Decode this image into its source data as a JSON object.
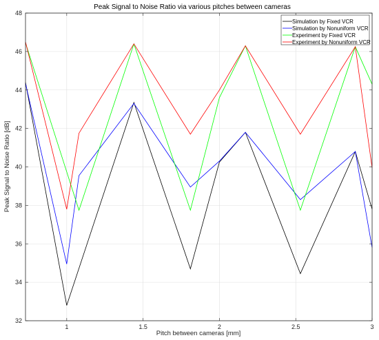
{
  "chart_data": {
    "type": "line",
    "title": "Peak Signal to Noise Ratio via various pitches between cameras",
    "xlabel": "Pitch between cameras [mm]",
    "ylabel": "Peak Signal to Noise Ratio [dB]",
    "xlim": [
      0.73,
      3.0
    ],
    "ylim": [
      32,
      48
    ],
    "xticks": [
      1,
      1.5,
      2,
      2.5,
      3
    ],
    "xtick_labels": [
      "1",
      "1.5",
      "2",
      "2.5",
      "3"
    ],
    "yticks": [
      32,
      34,
      36,
      38,
      40,
      42,
      44,
      46,
      48
    ],
    "ytick_labels": [
      "32",
      "34",
      "36",
      "38",
      "40",
      "42",
      "44",
      "46",
      "48"
    ],
    "grid": true,
    "legend_position": "top-right",
    "series": [
      {
        "name": "Simulation by Fixed VCR",
        "color": "#000000",
        "x": [
          0.73,
          1.0,
          1.44,
          1.81,
          2.0,
          2.17,
          2.53,
          2.89,
          3.0
        ],
        "y": [
          44.4,
          32.8,
          43.35,
          34.7,
          40.25,
          41.8,
          34.45,
          40.8,
          37.8
        ]
      },
      {
        "name": "Simulation by Nonuniform VCR",
        "color": "#0000ff",
        "x": [
          0.73,
          1.0,
          1.08,
          1.44,
          1.81,
          2.0,
          2.17,
          2.53,
          2.89,
          3.0
        ],
        "y": [
          44.35,
          34.95,
          39.55,
          43.3,
          38.95,
          40.3,
          41.8,
          38.3,
          40.8,
          35.8
        ]
      },
      {
        "name": "Experiment by Fixed VCR",
        "color": "#00ff00",
        "x": [
          0.73,
          1.08,
          1.44,
          1.81,
          2.0,
          2.17,
          2.53,
          2.89,
          3.0
        ],
        "y": [
          46.45,
          37.75,
          46.4,
          37.75,
          43.6,
          46.3,
          37.75,
          46.25,
          44.3
        ]
      },
      {
        "name": "Experiment by Nonuniform VCR",
        "color": "#ff0000",
        "x": [
          0.73,
          1.0,
          1.08,
          1.44,
          1.81,
          2.0,
          2.17,
          2.53,
          2.89,
          3.0
        ],
        "y": [
          46.5,
          37.8,
          41.75,
          46.4,
          41.7,
          44.0,
          46.3,
          41.7,
          46.25,
          39.95
        ]
      }
    ]
  }
}
